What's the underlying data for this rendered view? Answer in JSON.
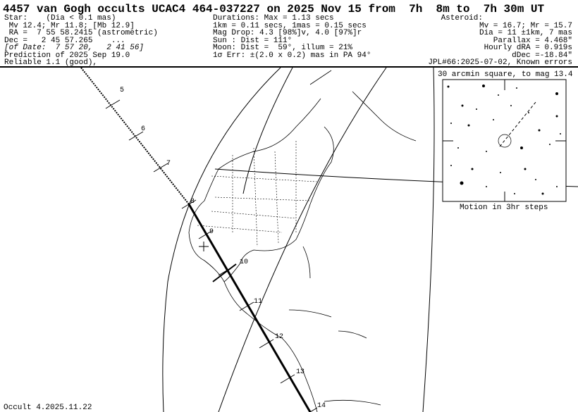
{
  "title": "4457 van Gogh occults UCAC4 464-037227 on 2025 Nov 15 from  7h  8m to  7h 30m UT",
  "star": [
    "Star:    (Dia < 0.1 mas)",
    " Mv 12.4; Mr 11.8; [Mb 12.9]",
    " RA =  7 55 58.2415 (astrometric)",
    "Dec =   2 45 57.265    ...",
    "[of Date:  7 57 20,   2 41 56]",
    "Prediction of 2025 Sep 19.0",
    "Reliable 1.1 (good),"
  ],
  "durations": [
    "Durations: Max = 1.13 secs",
    "1km = 0.11 secs, 1mas = 0.15 secs",
    "Mag Drop: 4.3 [98%]v, 4.0 [97%]r",
    "Sun : Dist = 111°",
    "Moon: Dist =  59°, illum = 21%",
    "1σ Err: ±(2.0 x 0.2) mas in PA 94°"
  ],
  "asteroid": [
    "Asteroid:",
    "Mv = 16.7; Mr = 15.7",
    "Dia = 11 ±1km, 7 mas",
    "Parallax = 4.468\"",
    "Hourly dRA = 0.919s",
    "dDec =-18.84\"",
    "JPL#66:2025-07-02, Known errors"
  ],
  "inset": {
    "caption_top": "30 arcmin square, to mag 13.4",
    "caption_bottom": "Motion in 3hr steps"
  },
  "path_ticks": [
    "5",
    "6",
    "7",
    "8",
    "9",
    "10",
    "11",
    "12",
    "13",
    "14"
  ],
  "footer": "Occult 4.2025.11.22"
}
